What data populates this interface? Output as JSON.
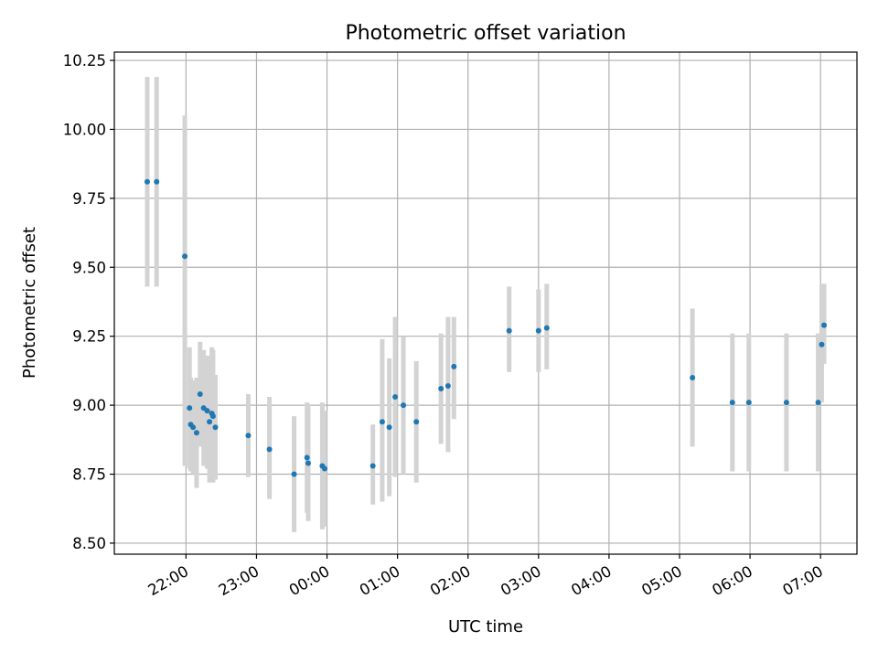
{
  "chart_data": {
    "type": "scatter",
    "title": "Photometric offset variation",
    "xlabel": "UTC time",
    "ylabel": "Photometric offset",
    "x_tick_labels": [
      "22:00",
      "23:00",
      "00:00",
      "01:00",
      "02:00",
      "03:00",
      "04:00",
      "05:00",
      "06:00",
      "07:00"
    ],
    "y_tick_labels": [
      "8.50",
      "8.75",
      "9.00",
      "9.25",
      "9.50",
      "9.75",
      "10.00",
      "10.25"
    ],
    "x_tick_times": [
      "2020-01-01T22:00",
      "2020-01-01T23:00",
      "2020-01-02T00:00",
      "2020-01-02T01:00",
      "2020-01-02T02:00",
      "2020-01-02T03:00",
      "2020-01-02T04:00",
      "2020-01-02T05:00",
      "2020-01-02T06:00",
      "2020-01-02T07:00"
    ],
    "y_ticks": [
      8.5,
      8.75,
      9.0,
      9.25,
      9.5,
      9.75,
      10.0,
      10.25
    ],
    "xlim": [
      "2020-01-01T20:59",
      "2020-01-02T07:31"
    ],
    "ylim": [
      8.46,
      10.28
    ],
    "grid": true,
    "marker_color": "#1f77b4",
    "errorbar_color": "#d3d3d3",
    "points": [
      {
        "x": "2020-01-01T21:27",
        "y": 9.81,
        "yerr_low": 9.43,
        "yerr_high": 10.19
      },
      {
        "x": "2020-01-01T21:35",
        "y": 9.81,
        "yerr_low": 9.43,
        "yerr_high": 10.19
      },
      {
        "x": "2020-01-01T21:59",
        "y": 9.54,
        "yerr_low": 8.78,
        "yerr_high": 10.05
      },
      {
        "x": "2020-01-01T22:03",
        "y": 8.99,
        "yerr_low": 8.77,
        "yerr_high": 9.21
      },
      {
        "x": "2020-01-01T22:04",
        "y": 8.93,
        "yerr_low": 8.76,
        "yerr_high": 9.1
      },
      {
        "x": "2020-01-01T22:06",
        "y": 8.92,
        "yerr_low": 8.75,
        "yerr_high": 9.09
      },
      {
        "x": "2020-01-01T22:09",
        "y": 8.9,
        "yerr_low": 8.7,
        "yerr_high": 9.1
      },
      {
        "x": "2020-01-01T22:12",
        "y": 9.04,
        "yerr_low": 8.85,
        "yerr_high": 9.23
      },
      {
        "x": "2020-01-01T22:15",
        "y": 8.99,
        "yerr_low": 8.78,
        "yerr_high": 9.2
      },
      {
        "x": "2020-01-01T22:18",
        "y": 8.98,
        "yerr_low": 8.77,
        "yerr_high": 9.18
      },
      {
        "x": "2020-01-01T22:20",
        "y": 8.94,
        "yerr_low": 8.72,
        "yerr_high": 9.16
      },
      {
        "x": "2020-01-01T22:22",
        "y": 8.97,
        "yerr_low": 8.72,
        "yerr_high": 9.21
      },
      {
        "x": "2020-01-01T22:23",
        "y": 8.96,
        "yerr_low": 8.72,
        "yerr_high": 9.2
      },
      {
        "x": "2020-01-01T22:25",
        "y": 8.92,
        "yerr_low": 8.73,
        "yerr_high": 9.11
      },
      {
        "x": "2020-01-01T22:53",
        "y": 8.89,
        "yerr_low": 8.74,
        "yerr_high": 9.04
      },
      {
        "x": "2020-01-01T23:11",
        "y": 8.84,
        "yerr_low": 8.66,
        "yerr_high": 9.03
      },
      {
        "x": "2020-01-01T23:32",
        "y": 8.75,
        "yerr_low": 8.54,
        "yerr_high": 8.96
      },
      {
        "x": "2020-01-01T23:43",
        "y": 8.81,
        "yerr_low": 8.61,
        "yerr_high": 9.01
      },
      {
        "x": "2020-01-01T23:44",
        "y": 8.79,
        "yerr_low": 8.58,
        "yerr_high": 9.0
      },
      {
        "x": "2020-01-01T23:56",
        "y": 8.78,
        "yerr_low": 8.55,
        "yerr_high": 9.01
      },
      {
        "x": "2020-01-01T23:58",
        "y": 8.77,
        "yerr_low": 8.56,
        "yerr_high": 8.98
      },
      {
        "x": "2020-01-02T00:39",
        "y": 8.78,
        "yerr_low": 8.64,
        "yerr_high": 8.93
      },
      {
        "x": "2020-01-02T00:47",
        "y": 8.94,
        "yerr_low": 8.65,
        "yerr_high": 9.24
      },
      {
        "x": "2020-01-02T00:53",
        "y": 8.92,
        "yerr_low": 8.67,
        "yerr_high": 9.17
      },
      {
        "x": "2020-01-02T00:58",
        "y": 9.03,
        "yerr_low": 8.74,
        "yerr_high": 9.32
      },
      {
        "x": "2020-01-02T01:05",
        "y": 9.0,
        "yerr_low": 8.75,
        "yerr_high": 9.25
      },
      {
        "x": "2020-01-02T01:16",
        "y": 8.94,
        "yerr_low": 8.72,
        "yerr_high": 9.16
      },
      {
        "x": "2020-01-02T01:37",
        "y": 9.06,
        "yerr_low": 8.86,
        "yerr_high": 9.26
      },
      {
        "x": "2020-01-02T01:43",
        "y": 9.07,
        "yerr_low": 8.83,
        "yerr_high": 9.32
      },
      {
        "x": "2020-01-02T01:48",
        "y": 9.14,
        "yerr_low": 8.95,
        "yerr_high": 9.32
      },
      {
        "x": "2020-01-02T02:35",
        "y": 9.27,
        "yerr_low": 9.12,
        "yerr_high": 9.43
      },
      {
        "x": "2020-01-02T03:00",
        "y": 9.27,
        "yerr_low": 9.12,
        "yerr_high": 9.42
      },
      {
        "x": "2020-01-02T03:07",
        "y": 9.28,
        "yerr_low": 9.13,
        "yerr_high": 9.44
      },
      {
        "x": "2020-01-02T05:11",
        "y": 9.1,
        "yerr_low": 8.85,
        "yerr_high": 9.35
      },
      {
        "x": "2020-01-02T05:45",
        "y": 9.01,
        "yerr_low": 8.76,
        "yerr_high": 9.26
      },
      {
        "x": "2020-01-02T05:59",
        "y": 9.01,
        "yerr_low": 8.76,
        "yerr_high": 9.26
      },
      {
        "x": "2020-01-02T06:31",
        "y": 9.01,
        "yerr_low": 8.76,
        "yerr_high": 9.26
      },
      {
        "x": "2020-01-02T06:58",
        "y": 9.01,
        "yerr_low": 8.76,
        "yerr_high": 9.26
      },
      {
        "x": "2020-01-02T07:01",
        "y": 9.22,
        "yerr_low": 9.01,
        "yerr_high": 9.44
      },
      {
        "x": "2020-01-02T07:03",
        "y": 9.29,
        "yerr_low": 9.15,
        "yerr_high": 9.44
      }
    ]
  }
}
